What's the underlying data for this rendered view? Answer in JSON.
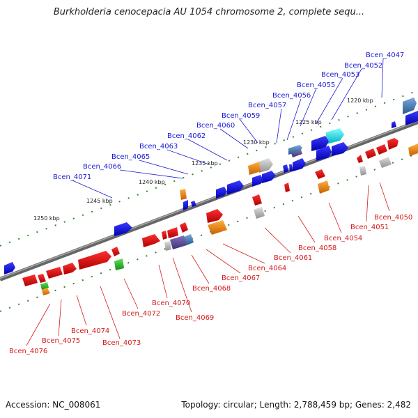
{
  "title": "Burkholderia cenocepacia AU 1054 chromosome 2, complete sequ...",
  "footer": {
    "accession": "Accession: NC_008061",
    "topology": "Topology: circular; Length: 2,788,459 bp; Genes: 2,482"
  },
  "scale_labels": [
    "1220 kbp",
    "1225 kbp",
    "1230 kbp",
    "1235 kbp",
    "1240 kbp",
    "1245 kbp",
    "1250 kbp"
  ],
  "top_labels": [
    "Bcen_4047",
    "Bcen_4052",
    "Bcen_4053",
    "Bcen_4055",
    "Bcen_4056",
    "Bcen_4057",
    "Bcen_4059",
    "Bcen_4060",
    "Bcen_4062",
    "Bcen_4063",
    "Bcen_4065",
    "Bcen_4066",
    "Bcen_4071"
  ],
  "bottom_labels": [
    "Bcen_4050",
    "Bcen_4051",
    "Bcen_4054",
    "Bcen_4058",
    "Bcen_4061",
    "Bcen_4064",
    "Bcen_4067",
    "Bcen_4068",
    "Bcen_4069",
    "Bcen_4070",
    "Bcen_4072",
    "Bcen_4073",
    "Bcen_4074",
    "Bcen_4075",
    "Bcen_4076"
  ],
  "colors": {
    "forward": "#0000e0",
    "reverse": "#e00000",
    "label_blue": "#1a1ad6",
    "label_red": "#d61a1a",
    "backbone": "#777777"
  }
}
